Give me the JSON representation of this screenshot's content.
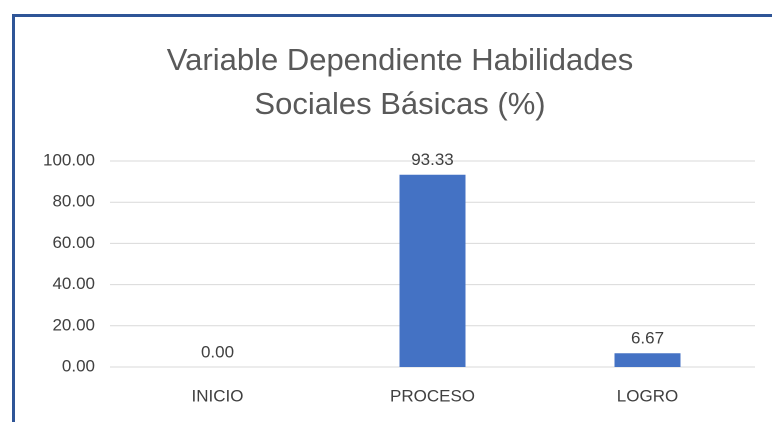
{
  "chart_data": {
    "type": "bar",
    "title": [
      "Variable Dependiente Habilidades",
      "Sociales Básicas (%)"
    ],
    "categories": [
      "INICIO",
      "PROCESO",
      "LOGRO"
    ],
    "values": [
      0,
      93.33,
      6.67
    ],
    "value_labels": [
      "0.00",
      "93.33",
      "6.67"
    ],
    "color": "#4472c4",
    "ylim": [
      0,
      100
    ],
    "yticks": [
      {
        "value": 0,
        "label": "0.00"
      },
      {
        "value": 20,
        "label": "20.00"
      },
      {
        "value": 40,
        "label": "40.00"
      },
      {
        "value": 60,
        "label": "60.00"
      },
      {
        "value": 80,
        "label": "80.00"
      },
      {
        "value": 100,
        "label": "100.00"
      }
    ],
    "grid": true
  }
}
